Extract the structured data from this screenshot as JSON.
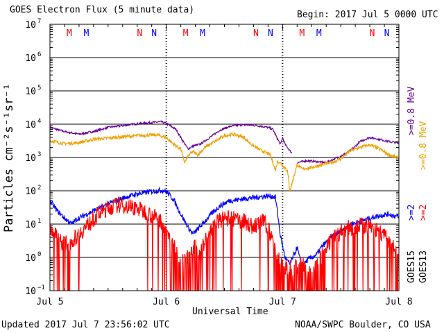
{
  "header": {
    "title": "GOES Electron Flux (5 minute data)",
    "begin": "Begin: 2017 Jul 5 0000 UTC"
  },
  "footer": {
    "updated": "Updated 2017 Jul  7 23:56:02 UTC",
    "credit": "NOAA/SWPC Boulder, CO USA"
  },
  "colors": {
    "goes15_08": "#660099",
    "goes13_08": "#f0a000",
    "goes15_2": "#0000ff",
    "goes13_2": "#ff0000",
    "threshold": "#000000"
  },
  "chart_data": {
    "type": "line",
    "title": "GOES Electron Flux (5 minute data)",
    "xlabel": "Universal Time",
    "ylabel": "Particles cm⁻²s⁻¹sr⁻¹",
    "yscale": "log",
    "ylim": [
      0.1,
      10000000
    ],
    "xlim_hours": [
      0,
      72
    ],
    "x_ticks": [
      {
        "hour": 0,
        "label": "Jul 5"
      },
      {
        "hour": 24,
        "label": "Jul 6"
      },
      {
        "hour": 48,
        "label": "Jul 7"
      },
      {
        "hour": 72,
        "label": "Jul 8"
      }
    ],
    "y_ticks": [
      {
        "value": 0.1,
        "base": "10",
        "exp": "−1"
      },
      {
        "value": 1,
        "base": "10",
        "exp": "0"
      },
      {
        "value": 10,
        "base": "10",
        "exp": "1"
      },
      {
        "value": 100,
        "base": "10",
        "exp": "2"
      },
      {
        "value": 1000,
        "base": "10",
        "exp": "3"
      },
      {
        "value": 10000,
        "base": "10",
        "exp": "4"
      },
      {
        "value": 100000,
        "base": "10",
        "exp": "5"
      },
      {
        "value": 1000000,
        "base": "10",
        "exp": "6"
      },
      {
        "value": 10000000,
        "base": "10",
        "exp": "7"
      }
    ],
    "threshold": 1000,
    "grid": true,
    "markers": [
      {
        "hour": 4,
        "label": "M",
        "color": "#ff0000"
      },
      {
        "hour": 7.5,
        "label": "M",
        "color": "#0000ff"
      },
      {
        "hour": 18.5,
        "label": "N",
        "color": "#ff0000"
      },
      {
        "hour": 21.5,
        "label": "N",
        "color": "#0000ff"
      },
      {
        "hour": 28,
        "label": "M",
        "color": "#ff0000"
      },
      {
        "hour": 31.5,
        "label": "M",
        "color": "#0000ff"
      },
      {
        "hour": 42.5,
        "label": "N",
        "color": "#ff0000"
      },
      {
        "hour": 45.5,
        "label": "N",
        "color": "#0000ff"
      },
      {
        "hour": 52,
        "label": "M",
        "color": "#ff0000"
      },
      {
        "hour": 55.5,
        "label": "M",
        "color": "#0000ff"
      },
      {
        "hour": 66.5,
        "label": "N",
        "color": "#ff0000"
      },
      {
        "hour": 69.5,
        "label": "N",
        "color": "#0000ff"
      }
    ],
    "legend": {
      "energy_labels": [
        {
          "text": ">=0.8 MeV",
          "color": "#660099"
        },
        {
          "text": ">=0.8 MeV",
          "color": "#f0a000"
        },
        {
          "text": ">=2",
          "color": "#0000ff"
        },
        {
          "text": ">=2",
          "color": "#ff0000"
        }
      ],
      "satellites": [
        "GOES15",
        "GOES13"
      ]
    },
    "series": [
      {
        "name": "GOES15 >=0.8 MeV",
        "color": "#660099",
        "noise": 0.03,
        "points": [
          [
            0,
            8000
          ],
          [
            3,
            6000
          ],
          [
            6,
            5000
          ],
          [
            9,
            6000
          ],
          [
            12,
            8000
          ],
          [
            16,
            9500
          ],
          [
            20,
            11000
          ],
          [
            23,
            11800
          ],
          [
            24,
            10500
          ],
          [
            26,
            7000
          ],
          [
            27.5,
            3000
          ],
          [
            28.5,
            1800
          ],
          [
            29.5,
            2200
          ],
          [
            31,
            2500
          ],
          [
            33,
            4000
          ],
          [
            35,
            6500
          ],
          [
            37,
            8500
          ],
          [
            39,
            9500
          ],
          [
            41,
            9500
          ],
          [
            43,
            9000
          ],
          [
            45,
            8000
          ],
          [
            46,
            7000
          ],
          [
            46.8,
            4000
          ],
          [
            47.5,
            2600
          ],
          [
            47.6,
            2500
          ],
          [
            48,
            4000
          ],
          [
            48.5,
            2500
          ],
          [
            50,
            1300
          ]
        ],
        "gap_then": [
          [
            51,
            700
          ],
          [
            53,
            800
          ],
          [
            55,
            750
          ],
          [
            57,
            700
          ],
          [
            60,
            1100
          ],
          [
            62,
            1600
          ],
          [
            64,
            3000
          ],
          [
            66,
            4000
          ],
          [
            68,
            3500
          ],
          [
            70,
            3000
          ],
          [
            72,
            2700
          ]
        ]
      },
      {
        "name": "GOES13 >=0.8 MeV",
        "color": "#f0a000",
        "noise": 0.05,
        "points": [
          [
            0,
            3200
          ],
          [
            3,
            2600
          ],
          [
            6,
            2800
          ],
          [
            9,
            3500
          ],
          [
            12,
            3800
          ],
          [
            15,
            4200
          ],
          [
            18,
            4500
          ],
          [
            22,
            4800
          ],
          [
            24,
            4000
          ],
          [
            25.5,
            2500
          ],
          [
            27,
            1800
          ],
          [
            27.8,
            700
          ],
          [
            28.5,
            1100
          ],
          [
            29.5,
            1500
          ],
          [
            30.5,
            1200
          ],
          [
            32,
            2000
          ],
          [
            34,
            3000
          ],
          [
            36,
            4500
          ],
          [
            38,
            5000
          ],
          [
            40,
            4000
          ],
          [
            41.5,
            2500
          ],
          [
            43,
            1800
          ],
          [
            44.5,
            1400
          ],
          [
            45.5,
            1200
          ],
          [
            46.5,
            400
          ],
          [
            47,
            800
          ],
          [
            48,
            600
          ],
          [
            49,
            400
          ],
          [
            49.5,
            100
          ],
          [
            50,
            180
          ],
          [
            51,
            600
          ],
          [
            52,
            450
          ],
          [
            54,
            500
          ],
          [
            56,
            600
          ],
          [
            58,
            700
          ],
          [
            60,
            900
          ],
          [
            62,
            1600
          ],
          [
            64,
            2000
          ],
          [
            66,
            2400
          ],
          [
            68,
            1800
          ],
          [
            70,
            1200
          ],
          [
            72,
            950
          ]
        ]
      },
      {
        "name": "GOES15 >=2 MeV",
        "color": "#0000ff",
        "noise": 0.08,
        "points": [
          [
            0,
            50
          ],
          [
            1.5,
            25
          ],
          [
            3,
            15
          ],
          [
            4.5,
            10
          ],
          [
            5.5,
            14
          ],
          [
            7,
            18
          ],
          [
            9,
            25
          ],
          [
            12,
            40
          ],
          [
            15,
            60
          ],
          [
            18,
            80
          ],
          [
            21,
            95
          ],
          [
            23,
            105
          ],
          [
            24,
            95
          ],
          [
            25.5,
            55
          ],
          [
            27,
            20
          ],
          [
            28.5,
            8
          ],
          [
            29.5,
            5
          ],
          [
            30.5,
            7
          ],
          [
            31.5,
            10
          ],
          [
            33,
            18
          ],
          [
            35,
            35
          ],
          [
            37,
            50
          ],
          [
            39,
            55
          ],
          [
            41,
            60
          ],
          [
            43,
            65
          ],
          [
            45,
            70
          ],
          [
            46.5,
            65
          ],
          [
            47,
            20
          ],
          [
            47.5,
            5
          ],
          [
            48.5,
            1
          ],
          [
            49.5,
            0.6
          ],
          [
            51,
            2
          ],
          [
            52,
            0.5
          ],
          [
            53,
            0.8
          ],
          [
            54,
            1
          ],
          [
            55,
            1.2
          ],
          [
            56,
            2
          ],
          [
            58,
            4
          ],
          [
            60,
            6
          ],
          [
            62,
            10
          ],
          [
            64,
            12
          ],
          [
            66,
            15
          ],
          [
            68,
            18
          ],
          [
            70,
            20
          ],
          [
            72,
            16
          ]
        ]
      },
      {
        "name": "GOES13 >=2 MeV",
        "color": "#ff0000",
        "noise": 0.25,
        "dropouts": true,
        "points": [
          [
            0,
            8
          ],
          [
            1.5,
            4
          ],
          [
            3,
            2.5
          ],
          [
            4.5,
            3
          ],
          [
            6,
            5
          ],
          [
            8,
            10
          ],
          [
            10,
            20
          ],
          [
            12,
            30
          ],
          [
            14,
            38
          ],
          [
            16,
            35
          ],
          [
            18,
            30
          ],
          [
            20,
            22
          ],
          [
            22,
            15
          ],
          [
            23,
            12
          ],
          [
            24,
            7
          ],
          [
            25,
            3
          ],
          [
            26,
            1.5
          ],
          [
            27,
            1
          ],
          [
            28,
            0.8
          ],
          [
            29,
            1.2
          ],
          [
            30,
            2
          ],
          [
            31,
            1.5
          ],
          [
            32,
            3
          ],
          [
            34,
            10
          ],
          [
            36,
            15
          ],
          [
            38,
            14
          ],
          [
            40,
            12
          ],
          [
            41,
            10
          ],
          [
            42,
            8
          ],
          [
            43,
            10
          ],
          [
            44,
            12
          ],
          [
            45,
            8
          ],
          [
            46,
            3
          ],
          [
            47,
            1
          ],
          [
            48,
            0.5
          ],
          [
            50,
            0.5
          ],
          [
            52,
            0.6
          ],
          [
            54,
            0.4
          ],
          [
            56,
            1
          ],
          [
            58,
            3
          ],
          [
            60,
            6
          ],
          [
            62,
            8
          ],
          [
            64,
            9
          ],
          [
            66,
            8
          ],
          [
            68,
            6
          ],
          [
            70,
            3
          ],
          [
            72,
            1
          ]
        ]
      }
    ]
  }
}
